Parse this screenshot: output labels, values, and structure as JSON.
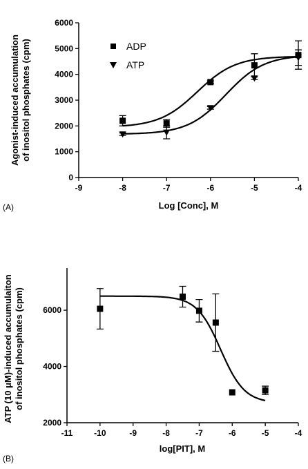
{
  "chart_data": [
    {
      "type": "scatter",
      "panel_label": "(A)",
      "title": "",
      "xlabel": "Log [Conc], M",
      "ylabel_line1": "Agonist-induced accumulation",
      "ylabel_line2": "of inositol phosphates (cpm)",
      "xlim": [
        -9,
        -4
      ],
      "ylim": [
        0,
        6000
      ],
      "xticks": [
        -9,
        -8,
        -7,
        -6,
        -5,
        -4
      ],
      "yticks": [
        0,
        1000,
        2000,
        3000,
        4000,
        5000,
        6000
      ],
      "legend_position": "top-left",
      "series": [
        {
          "name": "ADP",
          "marker": "square",
          "x": [
            -8,
            -7,
            -6,
            -5,
            -4
          ],
          "y": [
            2200,
            2100,
            3700,
            4350,
            4750
          ],
          "err": [
            200,
            150,
            50,
            450,
            550
          ],
          "fit": {
            "bottom": 1950,
            "top": 4700,
            "logEC50": -6.3,
            "hill": 1.0
          }
        },
        {
          "name": "ATP",
          "marker": "triangle-down",
          "x": [
            -8,
            -7,
            -6,
            -5,
            -4
          ],
          "y": [
            1680,
            1750,
            2700,
            3850,
            4650
          ],
          "err": [
            50,
            250,
            50,
            50,
            300
          ],
          "fit": {
            "bottom": 1680,
            "top": 4750,
            "logEC50": -5.65,
            "hill": 1.0
          }
        }
      ]
    },
    {
      "type": "scatter",
      "panel_label": "(B)",
      "title": "",
      "xlabel": "log[PIT], M",
      "ylabel_line1": "ATP (10 μM)-induced accumulaiton",
      "ylabel_line2": "of inositol phosphates (cpm)",
      "xlim": [
        -11,
        -4
      ],
      "ylim": [
        2000,
        7500
      ],
      "xticks": [
        -11,
        -10,
        -9,
        -8,
        -7,
        -6,
        -5,
        -4
      ],
      "yticks": [
        2000,
        4000,
        6000
      ],
      "series": [
        {
          "name": "",
          "marker": "square",
          "x": [
            -10,
            -7.5,
            -7,
            -6.5,
            -6,
            -5
          ],
          "y": [
            6050,
            6480,
            5980,
            5560,
            3080,
            3150
          ],
          "err": [
            720,
            370,
            400,
            1020,
            0,
            150
          ],
          "fit": {
            "bottom": 2700,
            "top": 6500,
            "logIC50": -6.35,
            "hill": -1.2
          }
        }
      ]
    }
  ]
}
